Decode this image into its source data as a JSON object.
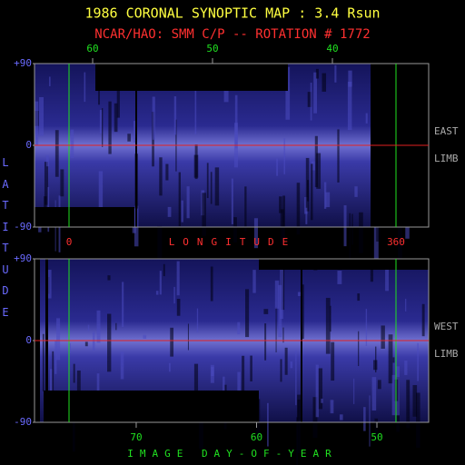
{
  "title": "1986 CORONAL SYNOPTIC MAP : 3.4 Rsun",
  "subtitle": "NCAR/HAO: SMM C/P -- ROTATION # 1772",
  "ylabel": "LATITUDE",
  "chart_data": [
    {
      "type": "image",
      "xlim": [
        64.85,
        31.97
      ],
      "xticks": [
        60,
        50,
        40
      ],
      "x2lim": [
        -38,
        396
      ],
      "x2ticks": [
        0,
        360
      ],
      "x2label": "LONGITUDE",
      "ylim": [
        -90,
        90
      ],
      "yticks": [
        {
          "value": 90,
          "label": "+90"
        },
        0,
        -90
      ],
      "side_label": [
        "EAST",
        "LIMB"
      ]
    },
    {
      "type": "image",
      "xlim": [
        78.45,
        45.7
      ],
      "xticks": [
        70,
        60,
        50
      ],
      "xlabel": "IMAGE DAY-OF-YEAR",
      "ylim": [
        -90,
        90
      ],
      "yticks": [
        {
          "value": 90,
          "label": "+90"
        },
        0,
        -90
      ],
      "side_label": [
        "WEST",
        "LIMB"
      ]
    }
  ]
}
